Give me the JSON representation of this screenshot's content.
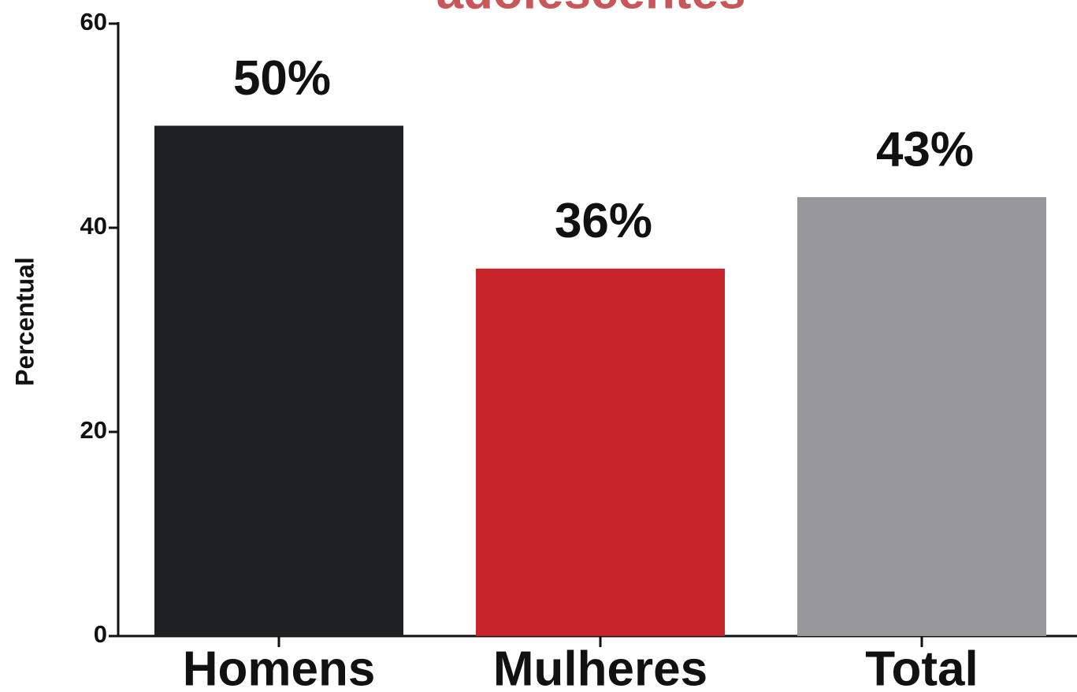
{
  "chart_data": {
    "type": "bar",
    "title": "adolescentes",
    "ylabel": "Percentual",
    "categories": [
      "Homens",
      "Mulheres",
      "Total"
    ],
    "values": [
      50,
      36,
      43
    ],
    "value_labels": [
      "50%",
      "36%",
      "43%"
    ],
    "colors": [
      "#1f2023",
      "#c8242b",
      "#98979c"
    ],
    "ylim": [
      0,
      60
    ],
    "yticks": [
      0,
      20,
      40,
      60
    ],
    "grid": false
  }
}
